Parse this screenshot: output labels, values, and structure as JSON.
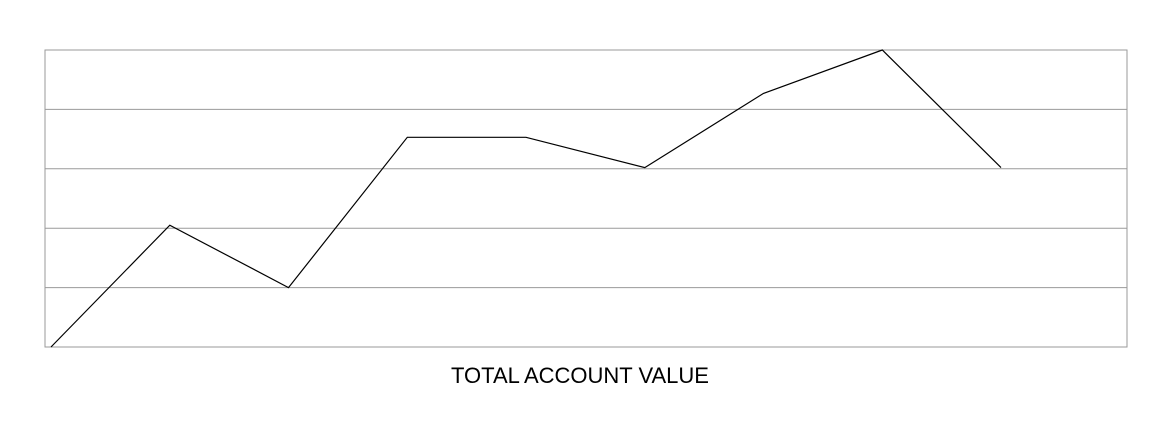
{
  "chart_data": {
    "type": "line",
    "title": "TOTAL ACCOUNT VALUE",
    "xlabel": "",
    "ylabel": "",
    "x": [
      1,
      2,
      3,
      4,
      5,
      6,
      7,
      8,
      9
    ],
    "ylim": [
      0,
      5
    ],
    "grid": true,
    "series": [
      {
        "values": [
          0,
          2.05,
          1.0,
          3.53,
          3.53,
          3.02,
          4.27,
          5.0,
          3.02
        ]
      }
    ],
    "colors": {
      "line": "#000000",
      "grid": "#9a9a9a",
      "frame": "#9a9a9a"
    }
  }
}
